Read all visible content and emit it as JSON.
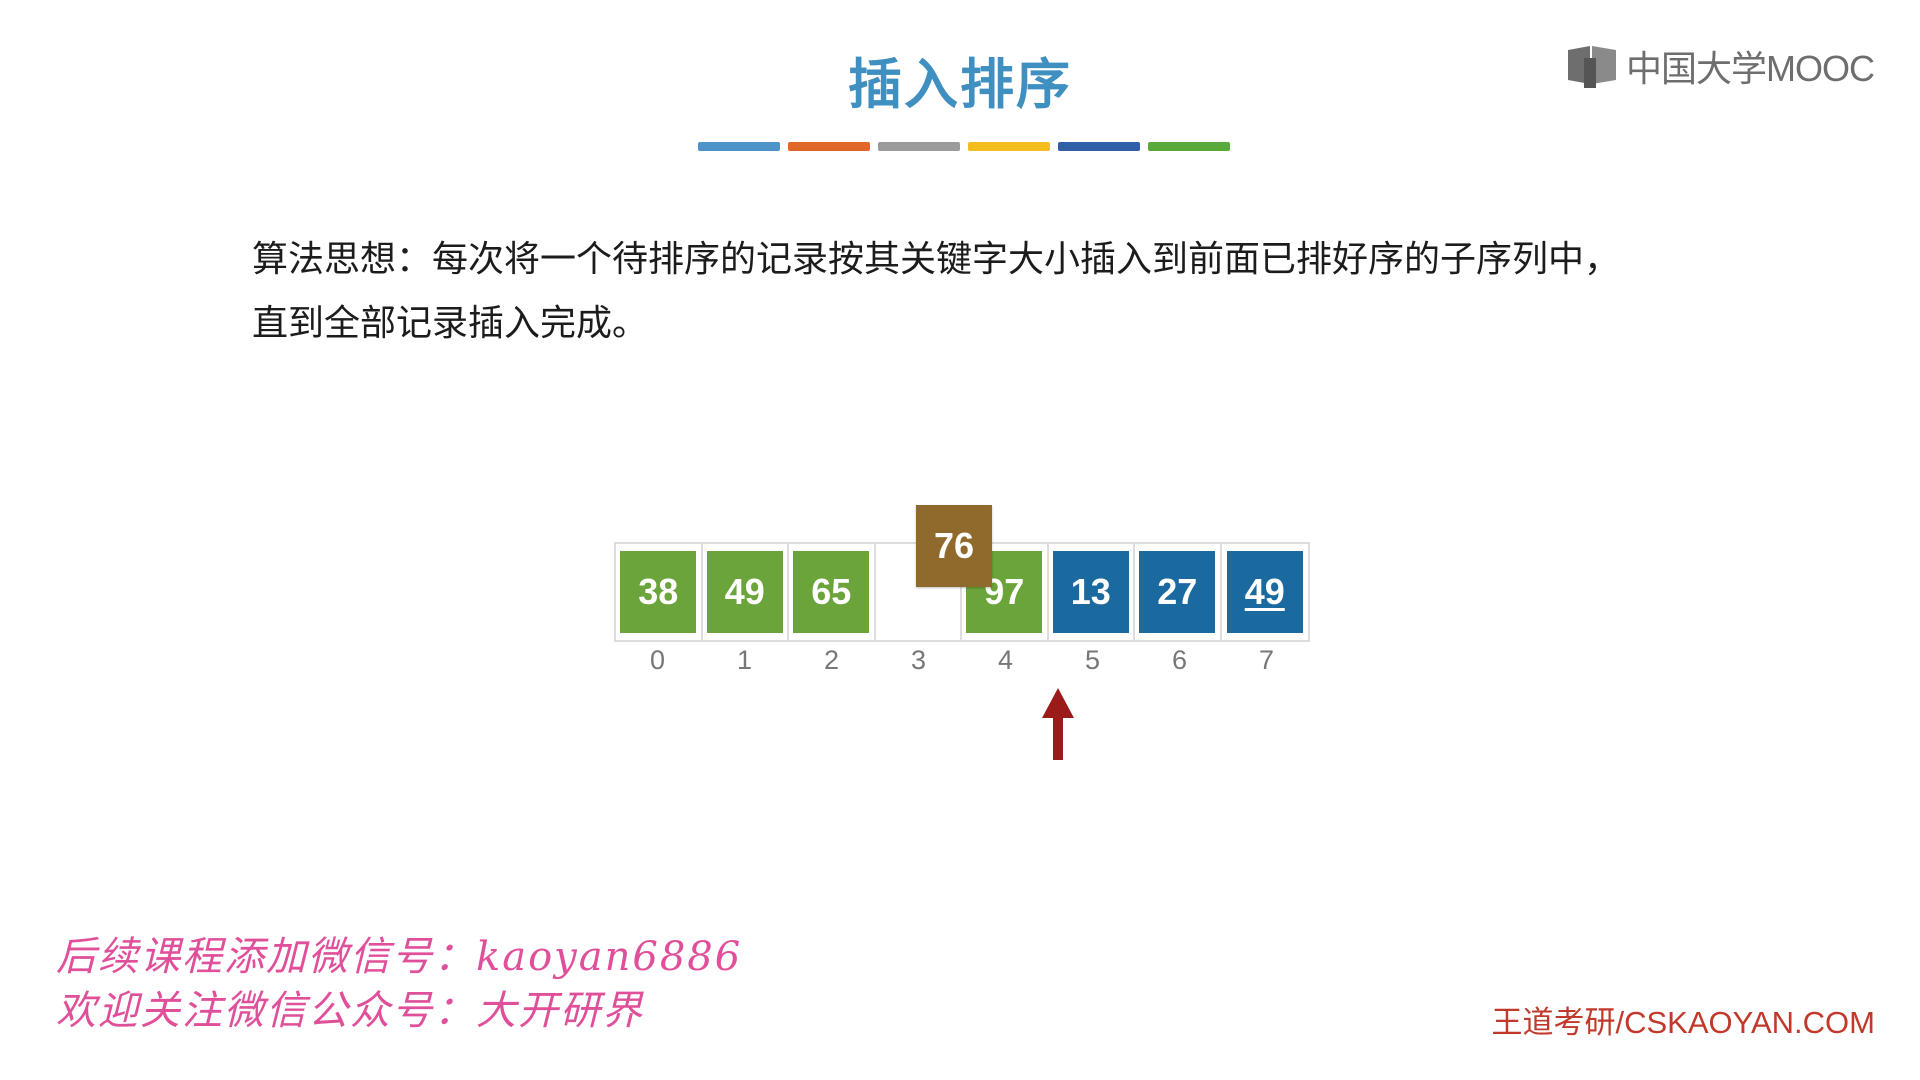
{
  "slide": {
    "title": "插入排序",
    "color_bar": [
      "#4d94c9",
      "#e0662a",
      "#9b9b9b",
      "#f2bd1d",
      "#2f5fa6",
      "#5aaa3b"
    ],
    "logo_text": "中国大学MOOC",
    "description": {
      "line1": "算法思想：每次将一个待排序的记录按其关键字大小插入到前面已排好序的子序列中，",
      "line2": "直到全部记录插入完成。"
    },
    "floating_value": "76",
    "cells": [
      {
        "value": "38",
        "color": "green",
        "underline": false
      },
      {
        "value": "49",
        "color": "green",
        "underline": false
      },
      {
        "value": "65",
        "color": "green",
        "underline": false
      },
      {
        "value": "",
        "color": "empty",
        "underline": false
      },
      {
        "value": "97",
        "color": "green",
        "underline": false
      },
      {
        "value": "13",
        "color": "blue",
        "underline": false
      },
      {
        "value": "27",
        "color": "blue",
        "underline": false
      },
      {
        "value": "49",
        "color": "blue",
        "underline": true
      }
    ],
    "indices": [
      "0",
      "1",
      "2",
      "3",
      "4",
      "5",
      "6",
      "7"
    ],
    "pointer_index": 5,
    "promo": {
      "line1": "后续课程添加微信号：kaoyan6886",
      "line2": "欢迎关注微信公众号：大开研界"
    },
    "footer": "王道考研/CSKAOYAN.COM"
  }
}
